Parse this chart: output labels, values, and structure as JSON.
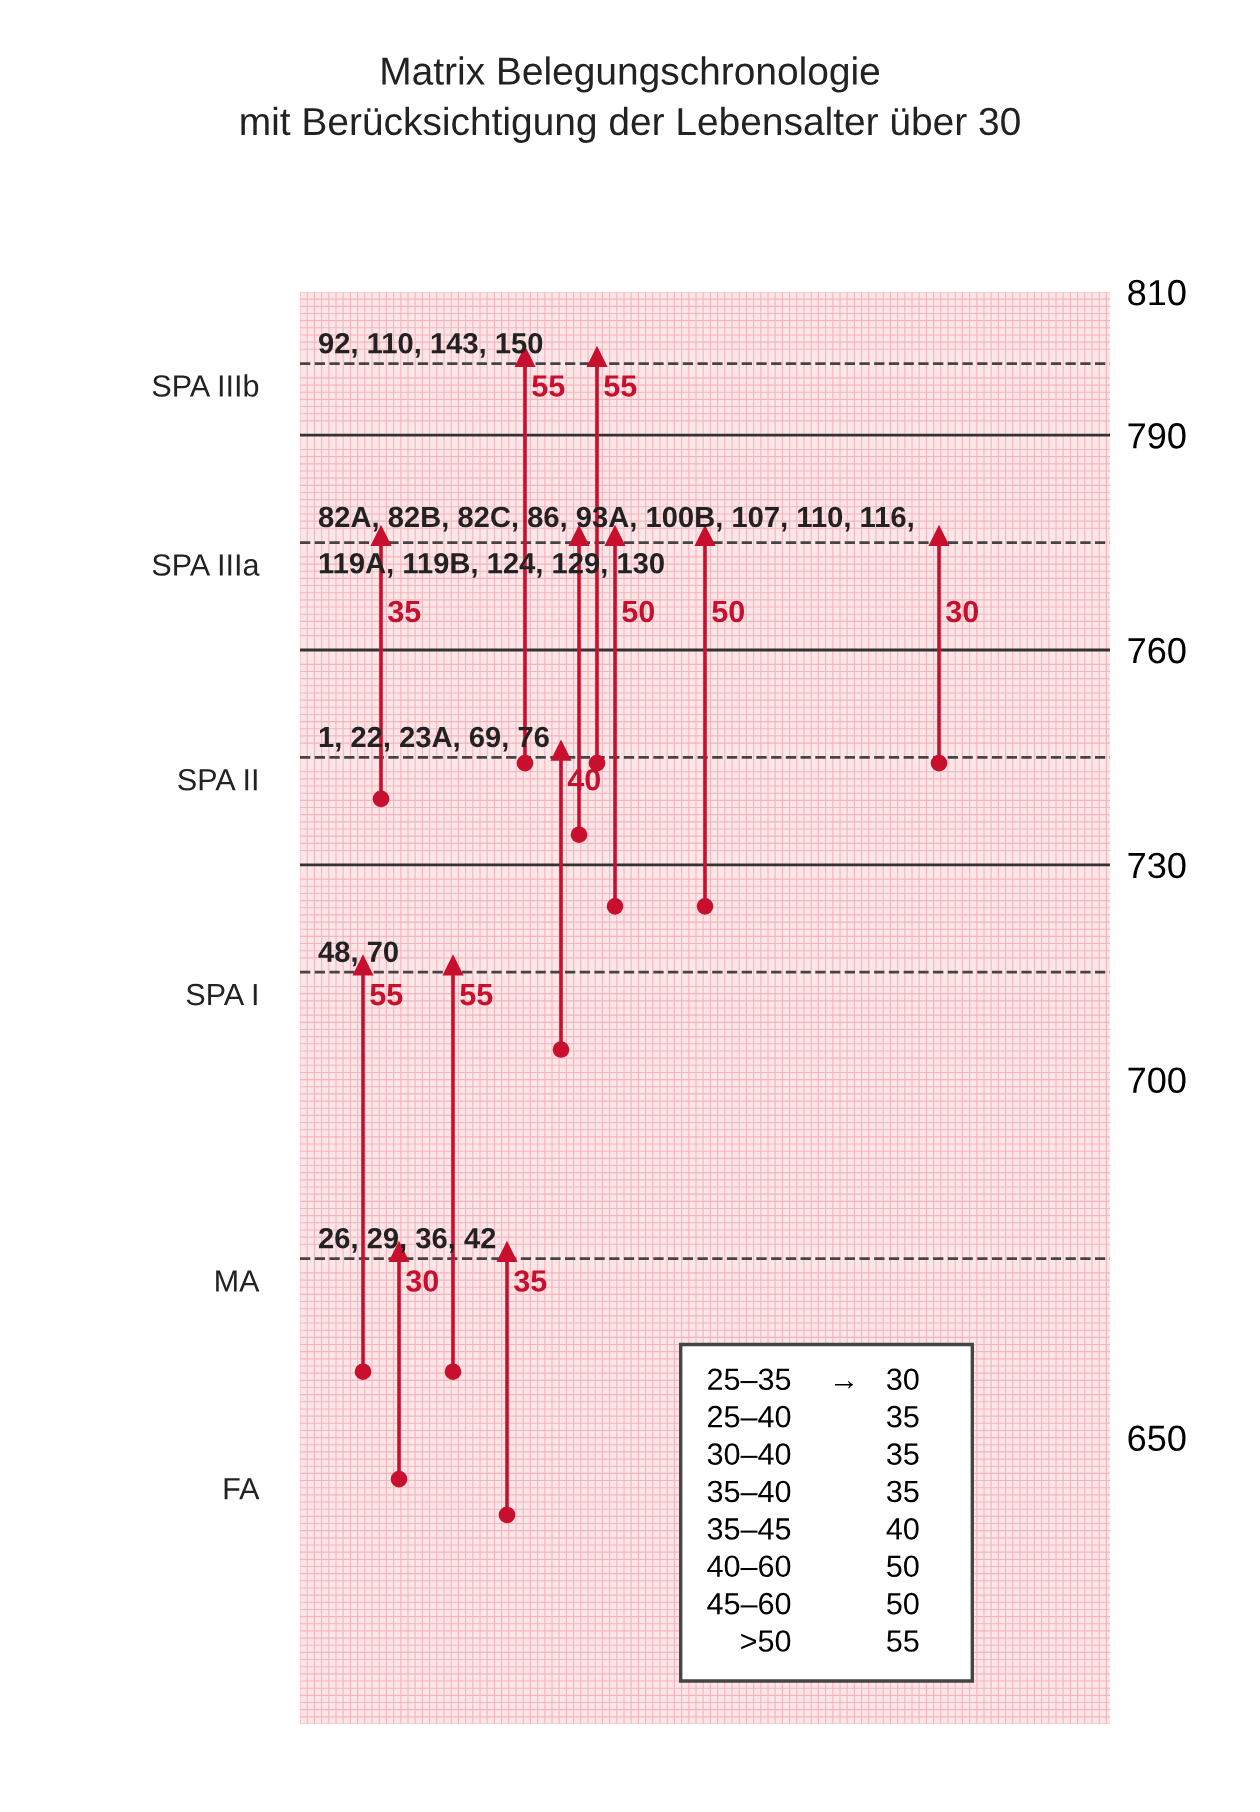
{
  "chart_data": {
    "type": "bar",
    "title": "Matrix Belegungschronologie\nmit Berücksichtigung der Lebensalter über 30",
    "categories": [
      null,
      null,
      null,
      null,
      null,
      null,
      null,
      null,
      null,
      null,
      null,
      null,
      null,
      null,
      null,
      null,
      null,
      null,
      null,
      null,
      null,
      null,
      null,
      null,
      null,
      null,
      null,
      null,
      null,
      null,
      null,
      null,
      null,
      null,
      null,
      null,
      null,
      null,
      null,
      null,
      null,
      null,
      null,
      null,
      null
    ],
    "base": [
      null,
      null,
      null,
      660,
      740,
      645,
      null,
      null,
      660,
      null,
      null,
      640,
      745,
      null,
      705,
      735,
      745,
      725,
      null,
      null,
      null,
      null,
      725,
      null,
      null,
      null,
      null,
      null,
      null,
      null,
      null,
      null,
      null,
      null,
      null,
      745,
      null,
      null,
      null,
      null,
      null,
      null,
      null,
      null,
      null
    ],
    "values": [
      null,
      null,
      null,
      55,
      35,
      30,
      null,
      null,
      55,
      null,
      null,
      35,
      55,
      null,
      40,
      40,
      55,
      50,
      null,
      null,
      null,
      null,
      50,
      null,
      null,
      null,
      null,
      null,
      null,
      null,
      null,
      null,
      null,
      null,
      null,
      30,
      null,
      null,
      null,
      null,
      null,
      null,
      null,
      null,
      null
    ],
    "value_labels": [
      null,
      null,
      null,
      "55",
      "35",
      "30",
      null,
      null,
      "55",
      null,
      null,
      "35",
      "55",
      null,
      "40",
      null,
      "55",
      "50",
      null,
      null,
      null,
      null,
      "50",
      null,
      null,
      null,
      null,
      null,
      null,
      null,
      null,
      null,
      null,
      null,
      null,
      "30",
      null,
      null,
      null,
      null,
      null,
      null,
      null,
      null,
      null
    ],
    "color": "#c8102e",
    "ylim": [
      610,
      810
    ],
    "yticks": [
      650,
      700,
      730,
      760,
      790,
      810
    ],
    "grid": true,
    "marker": "circle",
    "ref_lines": [
      {
        "axis": "y",
        "value": 800,
        "label": "SPA IIIb",
        "color": "#444444",
        "line_style": "dashed"
      },
      {
        "axis": "y",
        "value": 775,
        "label": "SPA IIIa",
        "color": "#444444",
        "line_style": "dashed"
      },
      {
        "axis": "y",
        "value": 745,
        "label": "SPA II",
        "color": "#444444",
        "line_style": "dashed"
      },
      {
        "axis": "y",
        "value": 715,
        "label": "SPA I",
        "color": "#444444",
        "line_style": "dashed"
      },
      {
        "axis": "y",
        "value": 675,
        "label": "MA",
        "color": "#444444",
        "line_style": "dashed"
      },
      {
        "axis": "y",
        "value": 790,
        "color": "#333333",
        "line_style": "solid"
      },
      {
        "axis": "y",
        "value": 760,
        "color": "#333333",
        "line_style": "solid"
      },
      {
        "axis": "y",
        "value": 730,
        "color": "#333333",
        "line_style": "solid"
      }
    ],
    "annotations": [
      "FA",
      {
        "text": "92, 110, 143, 150",
        "y": 800
      },
      {
        "text": "82A, 82B, 82C, 86, 93A, 100B, 107, 110, 116,\n119A, 119B, 124, 129, 130",
        "y": 775
      },
      {
        "text": "1, 22, 23A, 69, 76",
        "y": 745
      },
      {
        "text": "48, 70",
        "y": 715
      },
      {
        "text": "26, 29, 36, 42",
        "y": 675
      },
      "25–35\t→\t30",
      "25–40\t\t35",
      "30–40\t\t35",
      "35–40\t\t35",
      "35–45\t\t40",
      "40–60\t\t50",
      "45–60\t\t50",
      ">50\t\t55"
    ]
  }
}
